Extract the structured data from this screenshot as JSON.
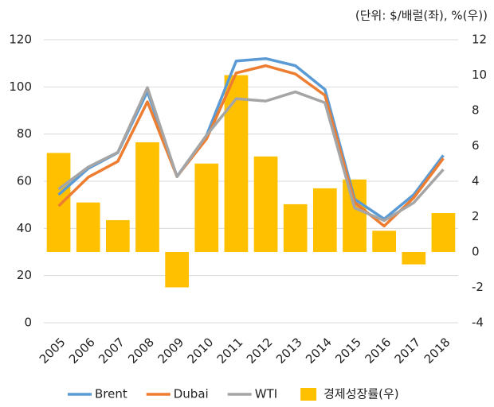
{
  "chart_data": {
    "type": "bar-line",
    "subtitle": "(단위: $/배럴(좌), %(우))",
    "categories": [
      "2005",
      "2006",
      "2007",
      "2008",
      "2009",
      "2010",
      "2011",
      "2012",
      "2013",
      "2014",
      "2015",
      "2016",
      "2017",
      "2018"
    ],
    "series": [
      {
        "name": "Brent",
        "type": "line",
        "color": "#5b9bd5",
        "values": [
          54.3,
          65.4,
          72.1,
          98.0,
          62.0,
          79.5,
          111.0,
          112.0,
          109.0,
          98.9,
          52.4,
          44.0,
          54.3,
          71.0
        ]
      },
      {
        "name": "Dubai",
        "type": "line",
        "color": "#ed7d31",
        "values": [
          49.5,
          61.7,
          68.4,
          93.7,
          62.0,
          78.0,
          105.9,
          109.0,
          105.5,
          96.4,
          51.0,
          41.0,
          53.0,
          69.7
        ]
      },
      {
        "name": "WTI",
        "type": "line",
        "color": "#a5a5a5",
        "values": [
          56.6,
          66.0,
          72.3,
          99.7,
          61.9,
          79.5,
          95.0,
          94.0,
          97.9,
          93.3,
          48.7,
          43.3,
          50.9,
          65.0
        ]
      },
      {
        "name": "경제성장률(우)",
        "type": "bar",
        "axis": "y2",
        "color": "#ffc000",
        "values": [
          5.6,
          2.8,
          1.8,
          6.2,
          -2.0,
          5.0,
          10.0,
          5.4,
          2.7,
          3.6,
          4.1,
          1.2,
          -0.7,
          2.2
        ]
      }
    ],
    "ylim": [
      0,
      120
    ],
    "yticks": [
      0,
      20,
      40,
      60,
      80,
      100,
      120
    ],
    "y2lim": [
      -4,
      12
    ],
    "y2ticks": [
      -4,
      -2,
      0,
      2,
      4,
      6,
      8,
      10,
      12
    ],
    "grid": true,
    "legend": "bottom"
  }
}
